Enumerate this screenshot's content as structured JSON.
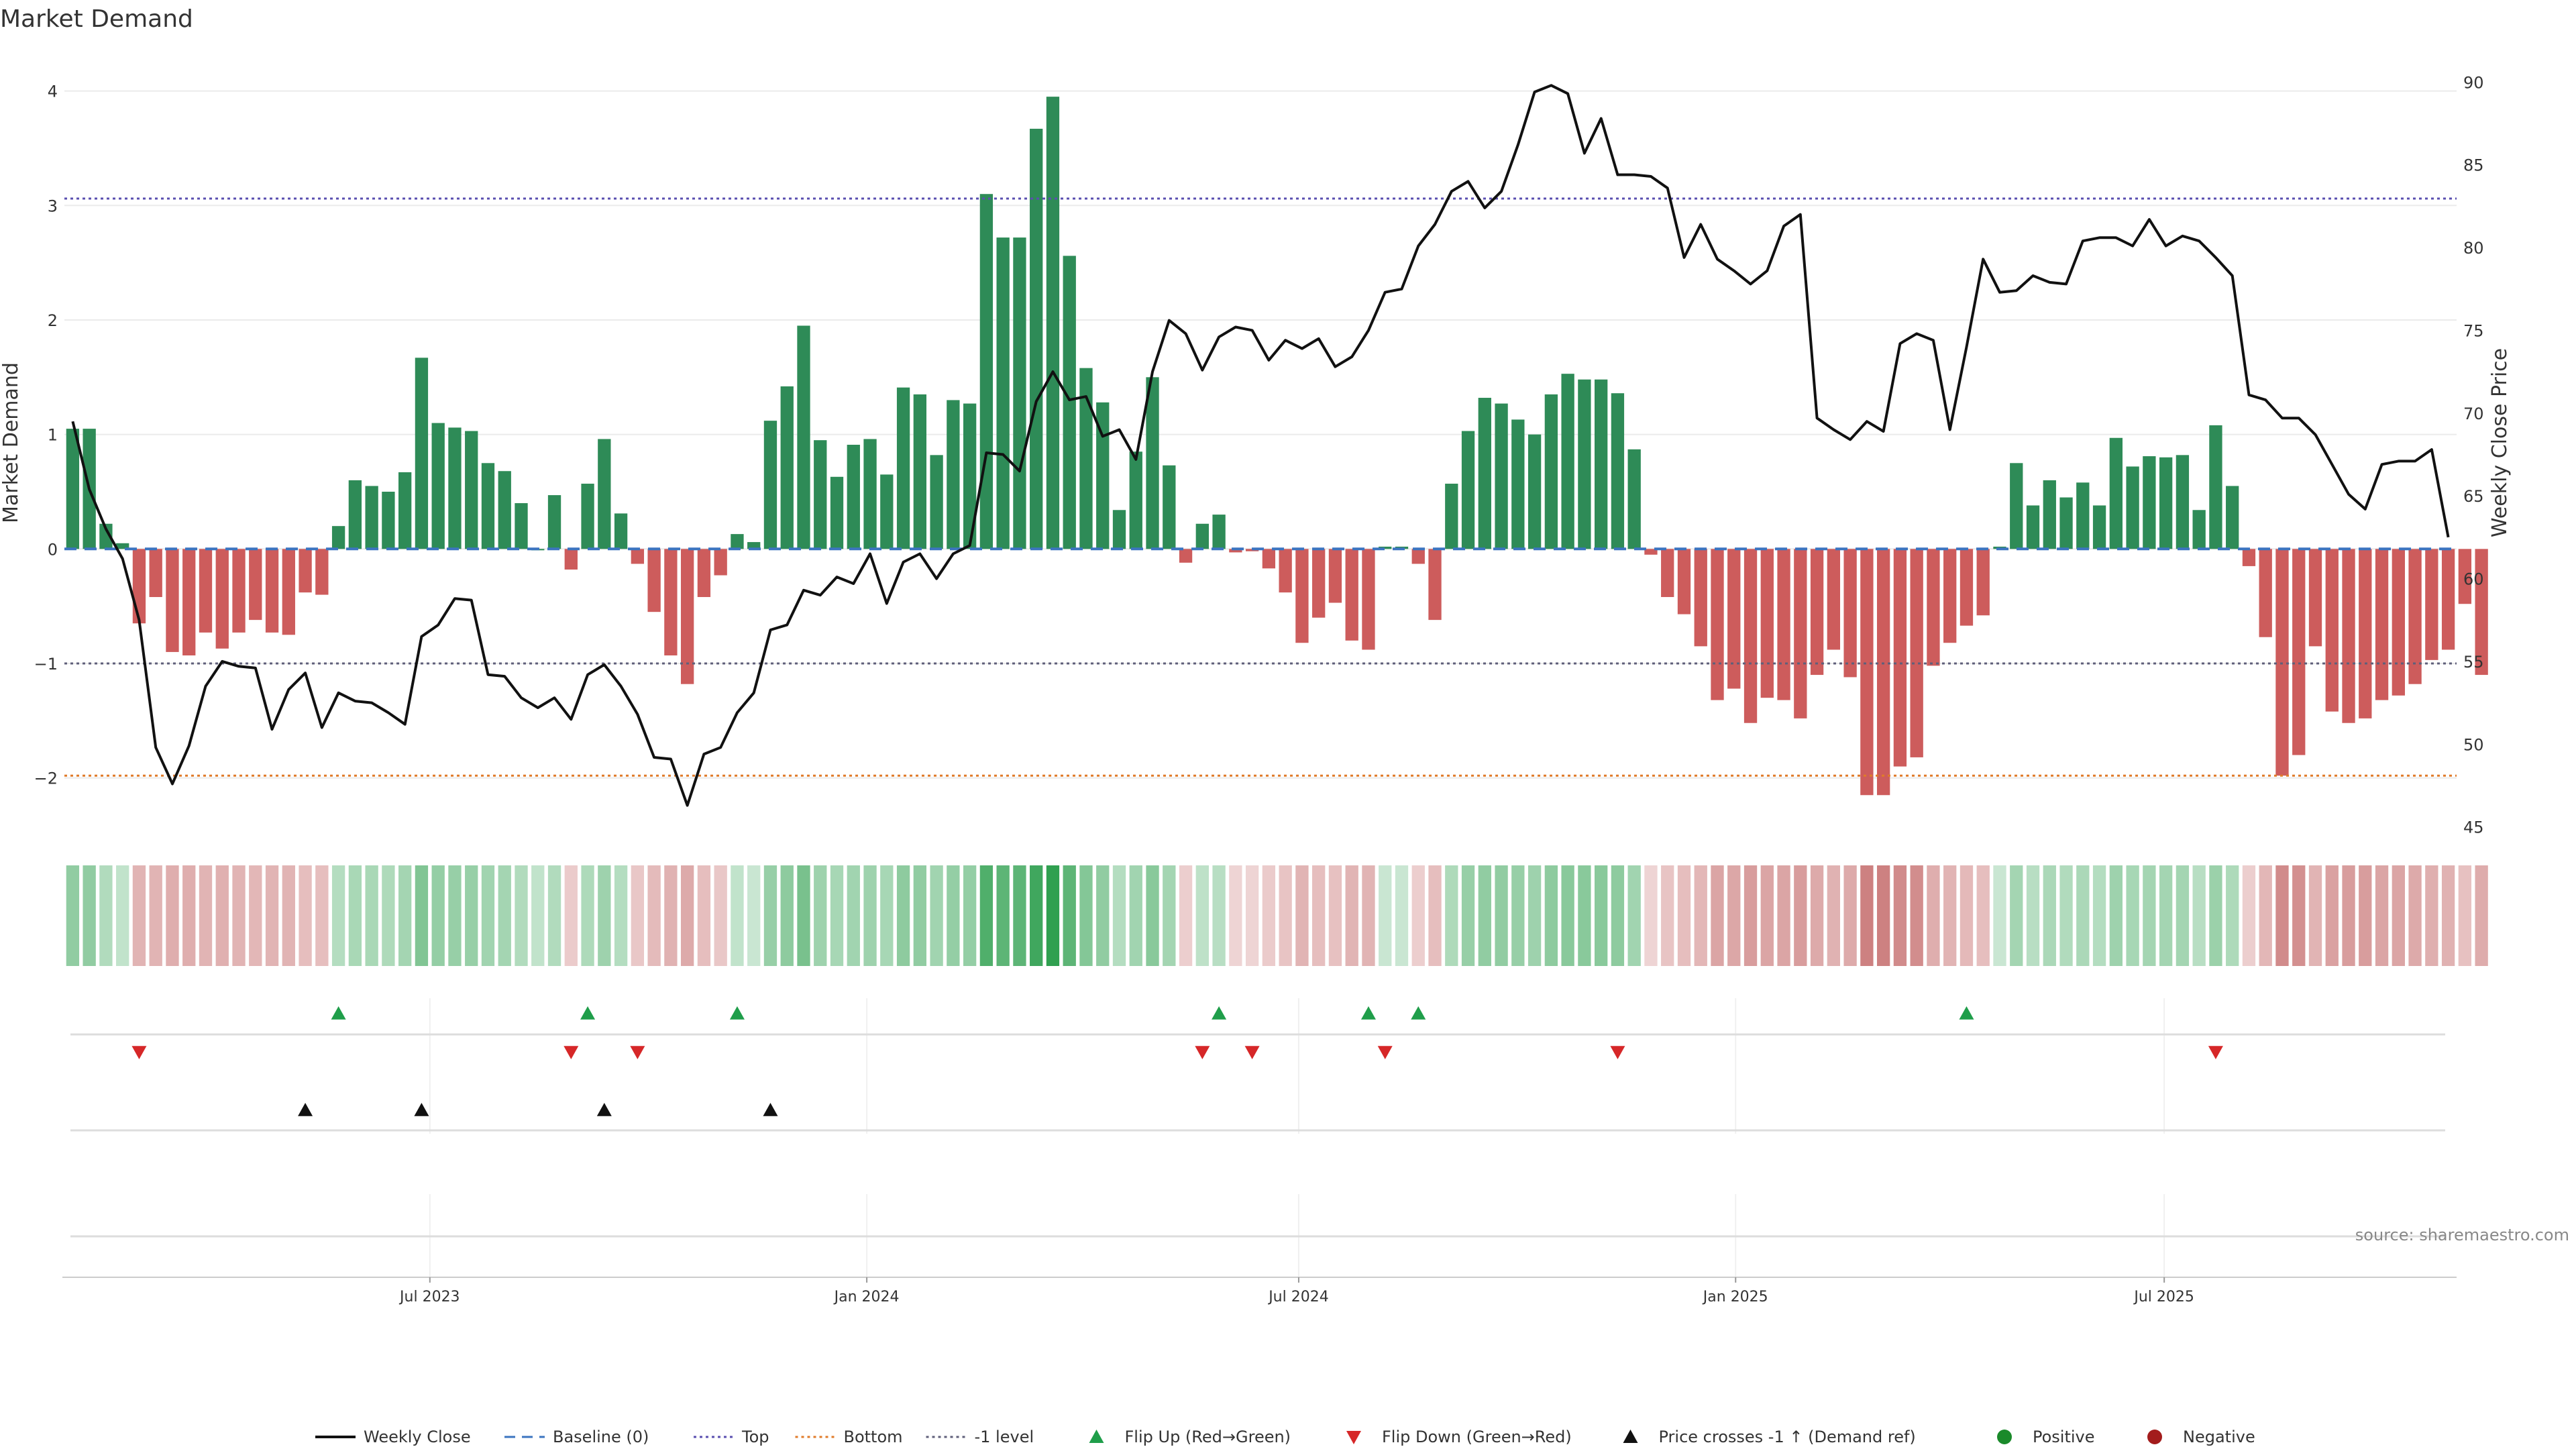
{
  "chart_data": {
    "type": "bar",
    "title": "Market Demand",
    "ylabel": "Market Demand",
    "y2label": "Weekly Close Price",
    "ylim": [
      -2.5,
      4.15
    ],
    "y2lim": [
      44.5,
      90.5
    ],
    "yticks": [
      -2,
      -1,
      0,
      1,
      2,
      3,
      4
    ],
    "y2ticks": [
      45,
      50,
      55,
      60,
      65,
      70,
      75,
      80,
      85,
      90
    ],
    "ytick_labels": [
      "−2",
      "−1",
      "0",
      "1",
      "2",
      "3",
      "4"
    ],
    "y2tick_labels": [
      "45",
      "50",
      "55",
      "60",
      "65",
      "70",
      "75",
      "80",
      "85",
      "90"
    ],
    "xtick_labels": [
      {
        "label": "Jul 2023",
        "week": 21.5
      },
      {
        "label": "Jan 2024",
        "week": 47.8
      },
      {
        "label": "Jul 2024",
        "week": 73.8
      },
      {
        "label": "Jan 2025",
        "week": 100.1
      },
      {
        "label": "Jul 2025",
        "week": 125.9
      }
    ],
    "weeks": 144,
    "demand": [
      1.05,
      1.05,
      0.22,
      0.05,
      -0.65,
      -0.42,
      -0.9,
      -0.93,
      -0.73,
      -0.87,
      -0.73,
      -0.62,
      -0.73,
      -0.75,
      -0.38,
      -0.4,
      0.2,
      0.6,
      0.55,
      0.5,
      0.67,
      1.67,
      1.1,
      1.06,
      1.03,
      0.75,
      0.68,
      0.4,
      0.0,
      0.47,
      -0.18,
      0.57,
      0.96,
      0.31,
      -0.13,
      -0.55,
      -0.93,
      -1.18,
      -0.42,
      -0.23,
      0.13,
      0.06,
      1.12,
      1.42,
      1.95,
      0.95,
      0.63,
      0.91,
      0.96,
      0.65,
      1.41,
      1.35,
      0.82,
      1.3,
      1.27,
      3.1,
      2.72,
      2.72,
      3.67,
      3.95,
      2.56,
      1.58,
      1.28,
      0.34,
      0.85,
      1.5,
      0.73,
      -0.12,
      0.22,
      0.3,
      -0.03,
      -0.02,
      -0.17,
      -0.38,
      -0.82,
      -0.6,
      -0.47,
      -0.8,
      -0.88,
      0.02,
      0.02,
      -0.13,
      -0.62,
      0.57,
      1.03,
      1.32,
      1.27,
      1.13,
      1.0,
      1.35,
      1.53,
      1.48,
      1.48,
      1.36,
      0.87,
      -0.05,
      -0.42,
      -0.57,
      -0.85,
      -1.32,
      -1.22,
      -1.52,
      -1.3,
      -1.32,
      -1.48,
      -1.1,
      -0.88,
      -1.12,
      -2.15,
      -2.15,
      -1.9,
      -1.82,
      -1.02,
      -0.82,
      -0.67,
      -0.58,
      0.02,
      0.75,
      0.38,
      0.6,
      0.45,
      0.58,
      0.38,
      0.97,
      0.72,
      0.81,
      0.8,
      0.82,
      0.34,
      1.08,
      0.55,
      -0.15,
      -0.77,
      -1.98,
      -1.8,
      -0.85,
      -1.42,
      -1.52,
      -1.48,
      -1.32,
      -1.28,
      -1.18,
      -0.97,
      -0.88,
      -0.48,
      -1.1
    ],
    "price": [
      69.5,
      65.4,
      63.0,
      61.2,
      57.5,
      49.8,
      47.6,
      49.9,
      53.5,
      55.0,
      54.7,
      54.6,
      50.9,
      53.3,
      54.3,
      51.0,
      53.1,
      52.6,
      52.5,
      51.9,
      51.2,
      56.5,
      57.2,
      58.8,
      58.7,
      54.2,
      54.1,
      52.8,
      52.2,
      52.8,
      51.5,
      54.2,
      54.8,
      53.5,
      51.8,
      49.2,
      49.1,
      46.3,
      49.4,
      49.8,
      51.9,
      53.1,
      56.9,
      57.2,
      59.3,
      59.0,
      60.1,
      59.7,
      61.5,
      58.5,
      61.0,
      61.5,
      60.0,
      61.5,
      62.0,
      67.6,
      67.5,
      66.5,
      70.7,
      72.5,
      70.8,
      71.0,
      68.6,
      69.0,
      67.2,
      72.5,
      75.6,
      74.8,
      72.6,
      74.6,
      75.2,
      75.0,
      73.2,
      74.4,
      73.9,
      74.5,
      72.8,
      73.4,
      75.0,
      77.3,
      77.5,
      80.1,
      81.4,
      83.4,
      84.0,
      82.4,
      83.4,
      86.2,
      89.4,
      89.8,
      89.3,
      85.7,
      87.8,
      84.4,
      84.4,
      84.3,
      83.6,
      79.4,
      81.4,
      79.3,
      78.6,
      77.8,
      78.6,
      81.3,
      82.0,
      69.7,
      69.0,
      68.4,
      69.5,
      68.9,
      74.2,
      74.8,
      74.4,
      69.0,
      74.0,
      79.3,
      77.3,
      77.4,
      78.3,
      77.9,
      77.8,
      80.4,
      80.6,
      80.6,
      80.1,
      81.7,
      80.1,
      80.7,
      80.4,
      79.4,
      78.3,
      71.1,
      70.8,
      69.7,
      69.7,
      68.7,
      66.9,
      65.1,
      64.2,
      66.9,
      67.1,
      67.1,
      67.8,
      62.5
    ],
    "reference_lines": [
      {
        "name": "Top",
        "value": 3.06,
        "color": "#5a4fb0",
        "dash": "4 5"
      },
      {
        "name": "-1 level",
        "value": -1.0,
        "color": "#5f5f7a",
        "dash": "4 5"
      },
      {
        "name": "Bottom",
        "value": -1.98,
        "color": "#e07b2a",
        "dash": "4 5"
      },
      {
        "name": "Baseline (0)",
        "value": 0,
        "color": "#3b74c0",
        "dash": "18 12"
      }
    ],
    "heat_strip": [
      0.4,
      0.4,
      0.2,
      0.1,
      -0.3,
      -0.3,
      -0.35,
      -0.35,
      -0.3,
      -0.33,
      -0.3,
      -0.28,
      -0.3,
      -0.3,
      -0.22,
      -0.22,
      0.18,
      0.25,
      0.25,
      0.22,
      0.28,
      0.5,
      0.38,
      0.36,
      0.36,
      0.3,
      0.28,
      0.2,
      0.1,
      0.2,
      -0.12,
      0.22,
      0.32,
      0.18,
      -0.15,
      -0.25,
      -0.32,
      -0.38,
      -0.22,
      -0.15,
      0.1,
      0.05,
      0.36,
      0.42,
      0.55,
      0.32,
      0.26,
      0.3,
      0.32,
      0.26,
      0.42,
      0.4,
      0.3,
      0.38,
      0.38,
      0.8,
      0.72,
      0.72,
      0.9,
      1.0,
      0.72,
      0.48,
      0.4,
      0.18,
      0.3,
      0.45,
      0.28,
      -0.1,
      0.12,
      0.16,
      -0.05,
      -0.05,
      -0.12,
      -0.18,
      -0.3,
      -0.22,
      -0.2,
      -0.3,
      -0.3,
      0.05,
      0.05,
      -0.1,
      -0.22,
      0.22,
      0.36,
      0.4,
      0.4,
      0.36,
      0.32,
      0.42,
      0.45,
      0.45,
      0.45,
      0.42,
      0.3,
      -0.05,
      -0.18,
      -0.22,
      -0.28,
      -0.42,
      -0.4,
      -0.48,
      -0.42,
      -0.42,
      -0.48,
      -0.38,
      -0.32,
      -0.38,
      -0.7,
      -0.7,
      -0.62,
      -0.6,
      -0.35,
      -0.3,
      -0.26,
      -0.22,
      0.05,
      0.28,
      0.16,
      0.24,
      0.2,
      0.24,
      0.18,
      0.32,
      0.26,
      0.28,
      0.28,
      0.28,
      0.16,
      0.34,
      0.22,
      -0.1,
      -0.28,
      -0.62,
      -0.58,
      -0.3,
      -0.45,
      -0.48,
      -0.48,
      -0.42,
      -0.42,
      -0.38,
      -0.34,
      -0.32,
      -0.2,
      -0.36
    ],
    "flip_up_weeks": [
      16,
      31,
      40,
      69,
      78,
      81,
      114
    ],
    "flip_down_weeks": [
      4,
      30,
      34,
      68,
      71,
      79,
      93,
      129
    ],
    "price_cross_weeks": [
      14,
      21,
      32,
      42
    ],
    "positive_color": "#2e8b57",
    "negative_color": "#cd5c5c",
    "legend": [
      {
        "label": "Weekly Close",
        "kind": "line",
        "color": "#111111"
      },
      {
        "label": "Baseline (0)",
        "kind": "dash",
        "color": "#3b74c0"
      },
      {
        "label": "Top",
        "kind": "dot",
        "color": "#5a4fb0"
      },
      {
        "label": "Bottom",
        "kind": "dot",
        "color": "#e07b2a"
      },
      {
        "label": "-1 level",
        "kind": "dot",
        "color": "#5f5f7a"
      },
      {
        "label": "Flip Up (Red→Green)",
        "kind": "tri-up",
        "color": "#1f9e4a"
      },
      {
        "label": "Flip Down (Green→Red)",
        "kind": "tri-down",
        "color": "#d62728"
      },
      {
        "label": "Price crosses -1 ↑ (Demand ref)",
        "kind": "tri-up",
        "color": "#111111"
      },
      {
        "label": "Positive",
        "kind": "circle",
        "color": "#1a8a2a"
      },
      {
        "label": "Negative",
        "kind": "circle",
        "color": "#a31c1c"
      }
    ],
    "source": "source: sharemaestro.com"
  }
}
